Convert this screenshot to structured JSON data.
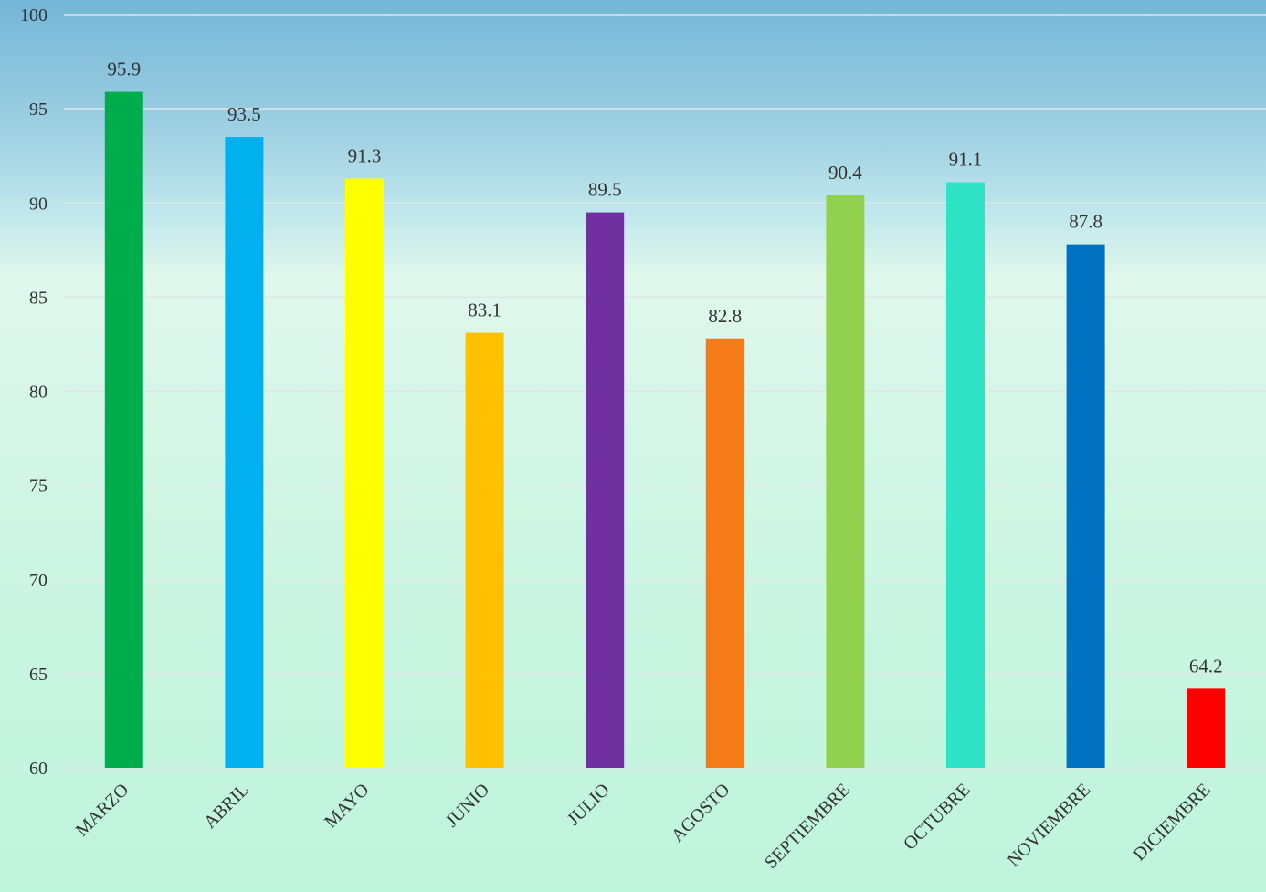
{
  "chart_data": {
    "type": "bar",
    "title": "",
    "xlabel": "",
    "ylabel": "",
    "ylim": [
      60,
      100
    ],
    "yticks": [
      60,
      65,
      70,
      75,
      80,
      85,
      90,
      95,
      100
    ],
    "grid": true,
    "legend": "none",
    "categories": [
      "MARZO",
      "ABRIL",
      "MAYO",
      "JUNIO",
      "JULIO",
      "AGOSTO",
      "SEPTIEMBRE",
      "OCTUBRE",
      "NOVIEMBRE",
      "DICIEMBRE"
    ],
    "values": [
      95.9,
      93.5,
      91.3,
      83.1,
      89.5,
      82.8,
      90.4,
      91.1,
      87.8,
      64.2
    ],
    "value_labels": [
      "95.9",
      "93.5",
      "91.3",
      "83.1",
      "89.5",
      "82.8",
      "90.4",
      "91.1",
      "87.8",
      "64.2"
    ],
    "bar_colors": [
      "#00ad4d",
      "#00b0ef",
      "#ffff00",
      "#ffc000",
      "#7030a0",
      "#f47b18",
      "#92d050",
      "#2ee3c6",
      "#0070c0",
      "#ff0000"
    ]
  }
}
